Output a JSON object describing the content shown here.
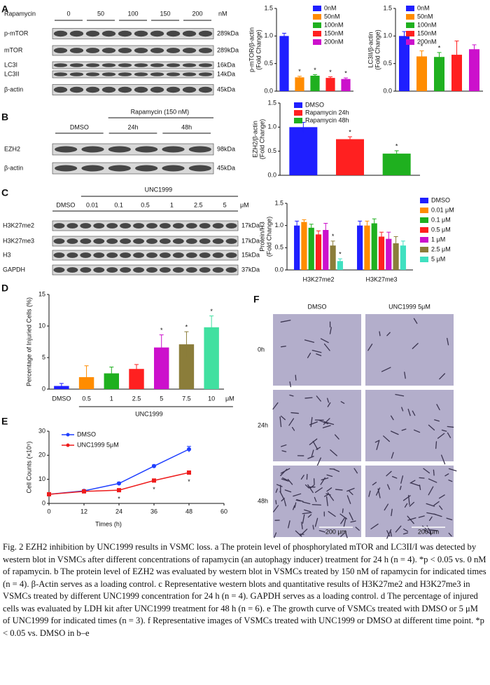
{
  "panel_labels": [
    "A",
    "B",
    "C",
    "D",
    "E",
    "F"
  ],
  "blot_a": {
    "treatment": "Rapamycin",
    "doses": [
      "0",
      "50",
      "100",
      "150",
      "200"
    ],
    "unit": "nM",
    "rows": [
      {
        "name": "p-mTOR",
        "size": "289kDa"
      },
      {
        "name": "mTOR",
        "size": "289kDa"
      },
      {
        "name": "LC3I",
        "size": "16kDa"
      },
      {
        "name": "LC3II",
        "size": "14kDa"
      },
      {
        "name": "β-actin",
        "size": "45kDa"
      }
    ]
  },
  "blot_b": {
    "treatment": "Rapamycin (150 nM)",
    "groups": [
      "DMSO",
      "24h",
      "48h"
    ],
    "rows": [
      {
        "name": "EZH2",
        "size": "98kDa"
      },
      {
        "name": "β-actin",
        "size": "45kDa"
      }
    ]
  },
  "blot_c": {
    "treatment": "UNC1999",
    "groups": [
      "DMSO",
      "0.01",
      "0.1",
      "0.5",
      "1",
      "2.5",
      "5"
    ],
    "unit": "μM",
    "rows": [
      {
        "name": "H3K27me2",
        "size": "17kDa"
      },
      {
        "name": "H3K27me3",
        "size": "17kDa"
      },
      {
        "name": "H3",
        "size": "15kDa"
      },
      {
        "name": "GAPDH",
        "size": "37kDa"
      }
    ]
  },
  "images_f": {
    "columns": [
      "DMSO",
      "UNC1999 5μM"
    ],
    "rows": [
      "0h",
      "24h",
      "48h"
    ],
    "scale": "200 μm"
  },
  "chart_data": [
    {
      "type": "bar",
      "ylabel": [
        "p-mTOR/β-actin",
        "(Fold Change)"
      ],
      "categories": [
        "0nM",
        "50nM",
        "100nM",
        "150nM",
        "200nM"
      ],
      "values": [
        1.0,
        0.25,
        0.28,
        0.24,
        0.22
      ],
      "errors": [
        0.05,
        0.02,
        0.02,
        0.02,
        0.02
      ],
      "significance": [
        null,
        "*",
        "*",
        "*",
        "*"
      ],
      "colors": [
        "#1f1fff",
        "#ff8c00",
        "#1fb01f",
        "#ff2020",
        "#cc10cc"
      ],
      "legend": true,
      "ylim": [
        0,
        1.5
      ],
      "yticks": [
        {
          "value": 0,
          "label": "0.0"
        },
        {
          "value": 0.5,
          "label": "0.5"
        },
        {
          "value": 1,
          "label": "1.0"
        },
        {
          "value": 1.5,
          "label": "1.5"
        }
      ]
    },
    {
      "type": "bar",
      "ylabel": [
        "LC3II/β-actin",
        "(Fold Change)"
      ],
      "categories": [
        "0nM",
        "50nM",
        "100nM",
        "150nM",
        "200nM"
      ],
      "values": [
        1.0,
        0.63,
        0.62,
        0.66,
        0.76
      ],
      "errors": [
        0.08,
        0.1,
        0.08,
        0.25,
        0.08
      ],
      "significance": [
        null,
        "*",
        "*",
        null,
        null
      ],
      "colors": [
        "#1f1fff",
        "#ff8c00",
        "#1fb01f",
        "#ff2020",
        "#cc10cc"
      ],
      "legend": true,
      "ylim": [
        0,
        1.5
      ],
      "yticks": [
        {
          "value": 0,
          "label": "0.0"
        },
        {
          "value": 0.5,
          "label": "0.5"
        },
        {
          "value": 1,
          "label": "1.0"
        },
        {
          "value": 1.5,
          "label": "1.5"
        }
      ]
    },
    {
      "type": "bar",
      "ylabel": [
        "EZH2/β-actin",
        "(Fold Change)"
      ],
      "categories": [
        "DMSO",
        "Rapamycin 24h",
        "Rapamycin 48h"
      ],
      "values": [
        1.0,
        0.75,
        0.45
      ],
      "errors": [
        0.1,
        0.05,
        0.06
      ],
      "significance": [
        null,
        "*",
        "*"
      ],
      "colors": [
        "#1f1fff",
        "#ff2020",
        "#1fb01f"
      ],
      "legend": true,
      "ylim": [
        0,
        1.5
      ],
      "yticks": [
        {
          "value": 0,
          "label": "0.0"
        },
        {
          "value": 0.5,
          "label": "0.5"
        },
        {
          "value": 1,
          "label": "1.0"
        },
        {
          "value": 1.5,
          "label": "1.5"
        }
      ]
    },
    {
      "type": "bar",
      "ylabel": [
        "Protein/H3",
        "(Fold Change)"
      ],
      "categories": [
        "H3K27me2",
        "H3K27me3"
      ],
      "series": [
        {
          "name": "DMSO",
          "color": "#1f1fff",
          "values": [
            1.0,
            1.0
          ],
          "errors": [
            0.1,
            0.1
          ],
          "significance": [
            null,
            null
          ]
        },
        {
          "name": "0.01 μM",
          "color": "#ff8c00",
          "values": [
            1.08,
            1.0
          ],
          "errors": [
            0.05,
            0.1
          ],
          "significance": [
            null,
            null
          ]
        },
        {
          "name": "0.1 μM",
          "color": "#1fb01f",
          "values": [
            0.95,
            1.05
          ],
          "errors": [
            0.08,
            0.1
          ],
          "significance": [
            null,
            null
          ]
        },
        {
          "name": "0.5 μM",
          "color": "#ff2020",
          "values": [
            0.8,
            0.75
          ],
          "errors": [
            0.08,
            0.1
          ],
          "significance": [
            null,
            null
          ]
        },
        {
          "name": "1 μM",
          "color": "#cc10cc",
          "values": [
            0.9,
            0.7
          ],
          "errors": [
            0.15,
            0.15
          ],
          "significance": [
            null,
            null
          ]
        },
        {
          "name": "2.5 μM",
          "color": "#8b7d3a",
          "values": [
            0.55,
            0.6
          ],
          "errors": [
            0.1,
            0.15
          ],
          "significance": [
            "*",
            null
          ]
        },
        {
          "name": "5 μM",
          "color": "#40e0c0",
          "values": [
            0.2,
            0.55
          ],
          "errors": [
            0.05,
            0.1
          ],
          "significance": [
            "*",
            null
          ]
        }
      ],
      "legend": true,
      "ylim": [
        0,
        1.5
      ],
      "yticks": [
        {
          "value": 0,
          "label": "0.0"
        },
        {
          "value": 0.5,
          "label": "0.5"
        },
        {
          "value": 1,
          "label": "1.0"
        },
        {
          "value": 1.5,
          "label": "1.5"
        }
      ]
    },
    {
      "type": "bar",
      "ylabel": [
        "Percentage of Injuried Cells (%)"
      ],
      "categories": [
        "DMSO",
        "0.5",
        "1",
        "2.5",
        "5",
        "7.5",
        "10"
      ],
      "values": [
        0.5,
        1.9,
        2.5,
        3.2,
        6.6,
        7.1,
        9.8
      ],
      "errors": [
        0.4,
        1.8,
        1.0,
        0.7,
        2.0,
        2.0,
        1.8
      ],
      "significance": [
        null,
        null,
        null,
        null,
        "*",
        "*",
        "*"
      ],
      "colors": [
        "#1f1fff",
        "#ff8c00",
        "#1fb01f",
        "#ff2020",
        "#cc10cc",
        "#8b7d3a",
        "#40e0a0"
      ],
      "legend": false,
      "xlabel": "UNC1999",
      "unit": "μM",
      "ylim": [
        0,
        15
      ],
      "yticks": [
        0,
        5,
        10,
        15
      ]
    },
    {
      "type": "line",
      "ylabel": [
        "Cell Counts (×10⁵)"
      ],
      "xlabel": "Times (h)",
      "x": [
        0,
        12,
        24,
        36,
        48
      ],
      "series": [
        {
          "name": "DMSO",
          "color": "#1f3fff",
          "marker": "circle",
          "values": [
            3.8,
            5.2,
            8.3,
            15.5,
            22.5
          ],
          "errors": [
            0.3,
            0.3,
            0.5,
            0.5,
            1.2
          ],
          "significance": [
            null,
            null,
            null,
            null,
            null
          ]
        },
        {
          "name": "UNC1999 5μM",
          "color": "#ee1c1c",
          "marker": "square",
          "values": [
            3.8,
            5.0,
            5.5,
            9.5,
            12.8
          ],
          "errors": [
            0.3,
            0.3,
            0.3,
            0.4,
            0.5
          ],
          "significance": [
            null,
            null,
            "*",
            "*",
            "*"
          ]
        }
      ],
      "xlim": [
        0,
        60
      ],
      "xticks": [
        0,
        12,
        24,
        36,
        48,
        60
      ],
      "ylim": [
        0,
        30
      ],
      "yticks": [
        0,
        10,
        20,
        30
      ]
    }
  ],
  "caption": "Fig. 2 EZH2 inhibition by UNC1999 results in VSMC loss. a The protein level of phosphorylated mTOR and LC3II/I was detected by western blot in VSMCs after different concentrations of rapamycin (an autophagy inducer) treatment for 24 h (n = 4). *p < 0.05 vs. 0 nM of rapamycin. b The protein level of EZH2 was evaluated by western blot in VSMCs treated by 150 nM of rapamycin for indicated times (n = 4). β-Actin serves as a loading control. c Representative western blots and quantitative results of H3K27me2 and H3K27me3 in VSMCs treated by different UNC1999 concentration for 24 h (n = 4). GAPDH serves as a loading control. d The percentage of injured cells was evaluated by LDH kit after UNC1999 treatment for 48 h (n = 6). e The growth curve of VSMCs treated with DMSO or 5 μM of UNC1999 for indicated times (n = 3). f Representative images of VSMCs treated with UNC1999 or DMSO at different time point. *p < 0.05 vs. DMSO in b–e"
}
